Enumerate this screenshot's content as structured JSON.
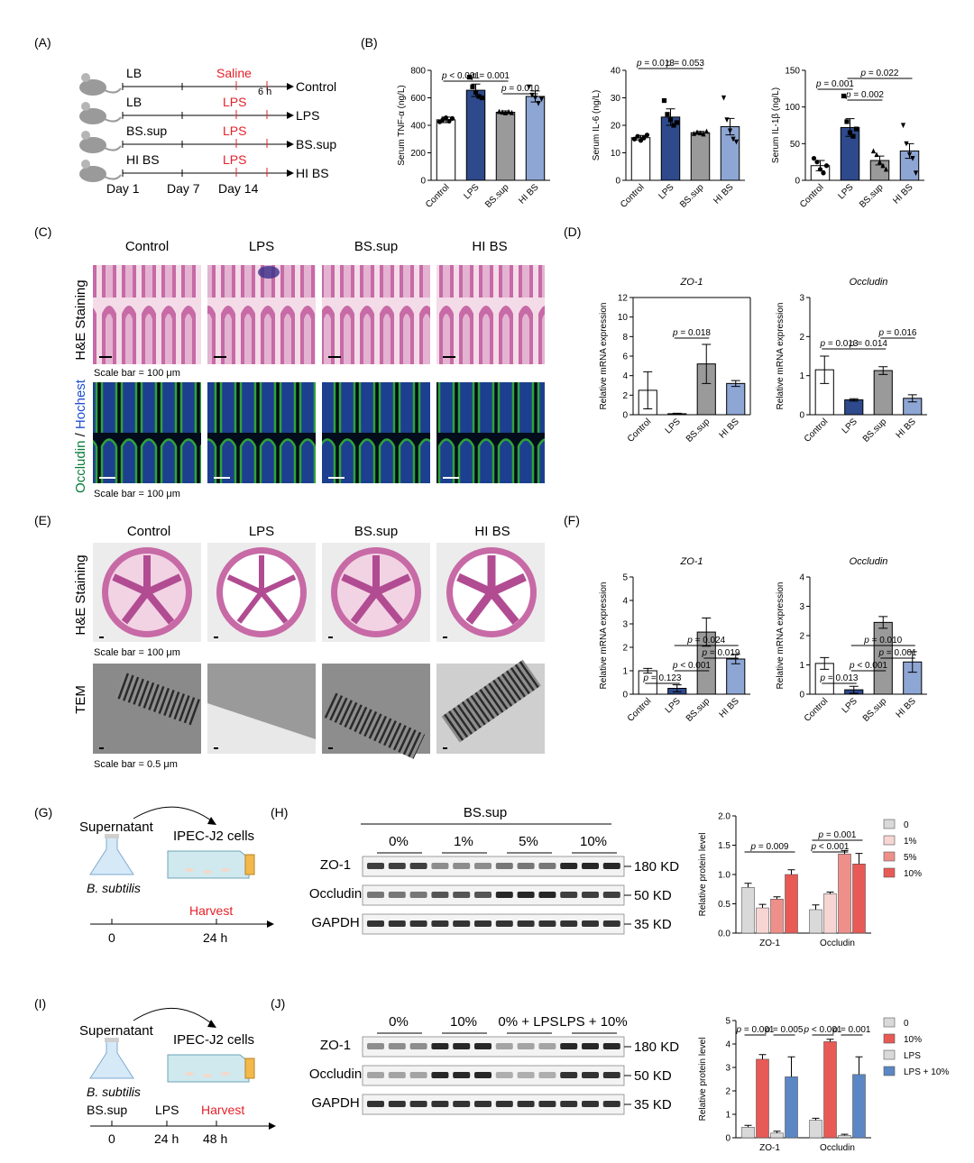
{
  "panels": {
    "A": "(A)",
    "B": "(B)",
    "C": "(C)",
    "D": "(D)",
    "E": "(E)",
    "F": "(F)",
    "G": "(G)",
    "H": "(H)",
    "I": "(I)",
    "J": "(J)"
  },
  "colors": {
    "control": "#ffffff",
    "lps": "#2e4a8c",
    "bssup": "#9a9a9a",
    "hibs": "#8ea6d4",
    "red": "#e4212a",
    "w0": "#d9d9d9",
    "w1": "#f7d5d2",
    "w5": "#ef8f8a",
    "w10": "#e85a55",
    "jlps10": "#5b87c4",
    "green": "#0a7d3b",
    "blue": "#1f4fd1"
  },
  "A": {
    "rows": [
      {
        "feed": "LB",
        "treat": "Saline",
        "group": "Control"
      },
      {
        "feed": "LB",
        "treat": "LPS",
        "group": "LPS"
      },
      {
        "feed": "BS.sup",
        "treat": "LPS",
        "group": "BS.sup"
      },
      {
        "feed": "HI BS",
        "treat": "LPS",
        "group": "HI BS"
      }
    ],
    "six_h": "6 h",
    "days": [
      "Day 1",
      "Day 7",
      "Day 14"
    ]
  },
  "chart_data": [
    {
      "id": "B1",
      "type": "bar",
      "ylabel": "Serum TNF-α (ng/L)",
      "categories": [
        "Control",
        "LPS",
        "BS.sup",
        "HI BS"
      ],
      "values": [
        440,
        655,
        495,
        610
      ],
      "errors": [
        20,
        45,
        10,
        40
      ],
      "ylim": [
        0,
        800
      ],
      "yticks": [
        0,
        200,
        400,
        600,
        800
      ],
      "points": [
        [
          425,
          440,
          455,
          430,
          450
        ],
        [
          750,
          680,
          640,
          610,
          600
        ],
        [
          500,
          495,
          490,
          498,
          492
        ],
        [
          680,
          620,
          600,
          560,
          590
        ]
      ],
      "markers": [
        "circle",
        "square",
        "triangle",
        "invtriangle"
      ],
      "sig": [
        {
          "a": 0,
          "b": 1,
          "label": "p < 0.001",
          "level": 1
        },
        {
          "a": 1,
          "b": 2,
          "label": "p = 0.001",
          "level": 1
        },
        {
          "a": 2,
          "b": 3,
          "label": "p = 0.010",
          "level": 0
        }
      ]
    },
    {
      "id": "B2",
      "type": "bar",
      "ylabel": "Serum IL-6 (ng/L)",
      "categories": [
        "Control",
        "LPS",
        "BS.sup",
        "HI BS"
      ],
      "values": [
        15.5,
        23,
        17.3,
        19.5
      ],
      "errors": [
        0.8,
        3,
        0.5,
        3
      ],
      "ylim": [
        0,
        40
      ],
      "yticks": [
        0,
        10,
        20,
        30,
        40
      ],
      "points": [
        [
          15,
          16,
          14.5,
          15.5,
          16.5
        ],
        [
          29,
          24,
          22,
          20,
          21
        ],
        [
          17,
          17.5,
          17.2,
          16.8,
          17.8
        ],
        [
          30,
          22,
          18,
          15,
          14
        ]
      ],
      "markers": [
        "circle",
        "square",
        "triangle",
        "invtriangle"
      ],
      "sig": [
        {
          "a": 0,
          "b": 1,
          "label": "p = 0.013",
          "level": 1
        },
        {
          "a": 1,
          "b": 2,
          "label": "p = 0.053",
          "level": 1
        }
      ]
    },
    {
      "id": "B3",
      "type": "bar",
      "ylabel": "Serum IL-1β (ng/L)",
      "categories": [
        "Control",
        "LPS",
        "BS.sup",
        "HI BS"
      ],
      "values": [
        20,
        72,
        27,
        40
      ],
      "errors": [
        7,
        12,
        6,
        10
      ],
      "ylim": [
        0,
        150
      ],
      "yticks": [
        0,
        50,
        100,
        150
      ],
      "points": [
        [
          30,
          25,
          15,
          10,
          20
        ],
        [
          115,
          80,
          65,
          60,
          70
        ],
        [
          40,
          35,
          25,
          20,
          15
        ],
        [
          75,
          50,
          35,
          30,
          10
        ]
      ],
      "markers": [
        "circle",
        "square",
        "triangle",
        "invtriangle"
      ],
      "sig": [
        {
          "a": 0,
          "b": 1,
          "label": "p = 0.001",
          "level": 2
        },
        {
          "a": 1,
          "b": 2,
          "label": "p = 0.002",
          "level": 1
        },
        {
          "a": 1,
          "b": 3,
          "label": "p = 0.022",
          "level": 3
        }
      ]
    },
    {
      "id": "D1",
      "type": "bar",
      "title": "ZO-1",
      "ylabel": "Relative mRNA expression",
      "categories": [
        "Control",
        "LPS",
        "BS.sup",
        "HI BS"
      ],
      "values": [
        2.5,
        0.1,
        5.2,
        3.2
      ],
      "errors": [
        1.9,
        0.05,
        2.0,
        0.3
      ],
      "ylim": [
        0,
        12
      ],
      "yticks": [
        0,
        2,
        4,
        6,
        8,
        10,
        12
      ],
      "sig": [
        {
          "a": 1,
          "b": 2,
          "label": "p = 0.018",
          "level": 0
        }
      ]
    },
    {
      "id": "D2",
      "type": "bar",
      "title": "Occludin",
      "ylabel": "Relative mRNA expression",
      "categories": [
        "Control",
        "LPS",
        "BS.sup",
        "HI BS"
      ],
      "values": [
        1.15,
        0.38,
        1.13,
        0.42
      ],
      "errors": [
        0.35,
        0.03,
        0.1,
        0.09
      ],
      "ylim": [
        0,
        3
      ],
      "yticks": [
        0,
        1,
        2,
        3
      ],
      "sig": [
        {
          "a": 0,
          "b": 1,
          "label": "p = 0.013",
          "level": 0
        },
        {
          "a": 1,
          "b": 2,
          "label": "p = 0.014",
          "level": 0
        },
        {
          "a": 2,
          "b": 3,
          "label": "p = 0.016",
          "level": 1
        }
      ]
    },
    {
      "id": "F1",
      "type": "bar",
      "title": "ZO-1",
      "ylabel": "Relative mRNA expression",
      "categories": [
        "Control",
        "LPS",
        "BS.sup",
        "HI BS"
      ],
      "values": [
        1.0,
        0.25,
        2.65,
        1.5
      ],
      "errors": [
        0.1,
        0.15,
        0.6,
        0.2
      ],
      "ylim": [
        0,
        5
      ],
      "yticks": [
        0,
        1,
        2,
        3,
        4,
        5
      ],
      "sig": [
        {
          "a": 0,
          "b": 1,
          "label": "p = 0.123",
          "level": 0
        },
        {
          "a": 1,
          "b": 2,
          "label": "p < 0.001",
          "level": 1
        },
        {
          "a": 2,
          "b": 3,
          "label": "p = 0.019",
          "level": 2
        },
        {
          "a": 1,
          "b": 3,
          "label": "p = 0.024",
          "level": 3
        }
      ]
    },
    {
      "id": "F2",
      "type": "bar",
      "title": "Occludin",
      "ylabel": "Relative mRNA expression",
      "categories": [
        "Control",
        "LPS",
        "BS.sup",
        "HI BS"
      ],
      "values": [
        1.05,
        0.15,
        2.45,
        1.1
      ],
      "errors": [
        0.2,
        0.12,
        0.2,
        0.35
      ],
      "ylim": [
        0,
        4
      ],
      "yticks": [
        0,
        1,
        2,
        3,
        4
      ],
      "sig": [
        {
          "a": 0,
          "b": 1,
          "label": "p = 0.013",
          "level": 0
        },
        {
          "a": 1,
          "b": 2,
          "label": "p < 0.001",
          "level": 1
        },
        {
          "a": 2,
          "b": 3,
          "label": "p = 0.001",
          "level": 2
        },
        {
          "a": 1,
          "b": 3,
          "label": "p = 0.010",
          "level": 3
        }
      ]
    },
    {
      "id": "H",
      "type": "bar",
      "ylabel": "Relative protein level",
      "categories": [
        "ZO-1",
        "Occludin"
      ],
      "series": [
        {
          "name": "0",
          "values": [
            0.78,
            0.4
          ],
          "errors": [
            0.07,
            0.08
          ]
        },
        {
          "name": "1%",
          "values": [
            0.43,
            0.67
          ],
          "errors": [
            0.06,
            0.03
          ]
        },
        {
          "name": "5%",
          "values": [
            0.58,
            1.35
          ],
          "errors": [
            0.04,
            0.06
          ]
        },
        {
          "name": "10%",
          "values": [
            1.0,
            1.18
          ],
          "errors": [
            0.08,
            0.18
          ]
        }
      ],
      "ylim": [
        0,
        2.0
      ],
      "yticks": [
        0.0,
        0.5,
        1.0,
        1.5,
        2.0
      ],
      "sig": [
        {
          "group": 0,
          "a": 0,
          "b": 3,
          "label": "p = 0.009",
          "level": 0
        },
        {
          "group": 1,
          "a": 0,
          "b": 2,
          "label": "p < 0.001",
          "level": 0
        },
        {
          "group": 1,
          "a": 0,
          "b": 3,
          "label": "p = 0.001",
          "level": 1
        }
      ]
    },
    {
      "id": "J",
      "type": "bar",
      "ylabel": "Relative protein level",
      "categories": [
        "ZO-1",
        "Occludin"
      ],
      "series": [
        {
          "name": "0",
          "values": [
            0.45,
            0.75
          ],
          "errors": [
            0.08,
            0.08
          ]
        },
        {
          "name": "10%",
          "values": [
            3.35,
            4.1
          ],
          "errors": [
            0.2,
            0.1
          ]
        },
        {
          "name": "LPS",
          "values": [
            0.2,
            0.1
          ],
          "errors": [
            0.08,
            0.05
          ]
        },
        {
          "name": "LPS + 10%",
          "values": [
            2.6,
            2.7
          ],
          "errors": [
            0.85,
            0.75
          ]
        }
      ],
      "ylim": [
        0,
        5
      ],
      "yticks": [
        0,
        1,
        2,
        3,
        4,
        5
      ],
      "sig": [
        {
          "group": 0,
          "a": 0,
          "b": 1,
          "label": "p = 0.001",
          "level": 0
        },
        {
          "group": 0,
          "a": 2,
          "b": 3,
          "label": "p = 0.005",
          "level": 0
        },
        {
          "group": 1,
          "a": 0,
          "b": 1,
          "label": "p < 0.001",
          "level": 0
        },
        {
          "group": 1,
          "a": 2,
          "b": 3,
          "label": "p = 0.001",
          "level": 0
        }
      ]
    }
  ],
  "C": {
    "cols": [
      "Control",
      "LPS",
      "BS.sup",
      "HI BS"
    ],
    "row1": "H&E Staining",
    "row2_a": "Occludin",
    "row2_sep": " / ",
    "row2_b": "Hochest",
    "scale1": "Scale bar = 100 μm",
    "scale2": "Scale bar = 100 μm"
  },
  "E": {
    "cols": [
      "Control",
      "LPS",
      "BS.sup",
      "HI BS"
    ],
    "row1": "H&E Staining",
    "row2": "TEM",
    "scale1": "Scale bar = 100 μm",
    "scale2": "Scale bar = 0.5 μm"
  },
  "G": {
    "supernatant": "Supernatant",
    "cells": "IPEC-J2 cells",
    "organism": "B. subtilis",
    "harvest": "Harvest",
    "t0": "0",
    "t1": "24 h"
  },
  "Hblot": {
    "title": "BS.sup",
    "groups": [
      "0%",
      "1%",
      "5%",
      "10%"
    ],
    "rows": [
      "ZO-1",
      "Occludin",
      "GAPDH"
    ],
    "sizes": [
      "180 KD",
      "50 KD",
      "35 KD"
    ]
  },
  "I": {
    "supernatant": "Supernatant",
    "cells": "IPEC-J2 cells",
    "organism": "B. subtilis",
    "steps": [
      "BS.sup",
      "LPS",
      "Harvest"
    ],
    "times": [
      "0",
      "24 h",
      "48 h"
    ]
  },
  "Jblot": {
    "groups": [
      "0%",
      "10%",
      "0% + LPS",
      "LPS + 10%"
    ],
    "rows": [
      "ZO-1",
      "Occludin",
      "GAPDH"
    ],
    "sizes": [
      "180 KD",
      "50 KD",
      "35 KD"
    ]
  }
}
